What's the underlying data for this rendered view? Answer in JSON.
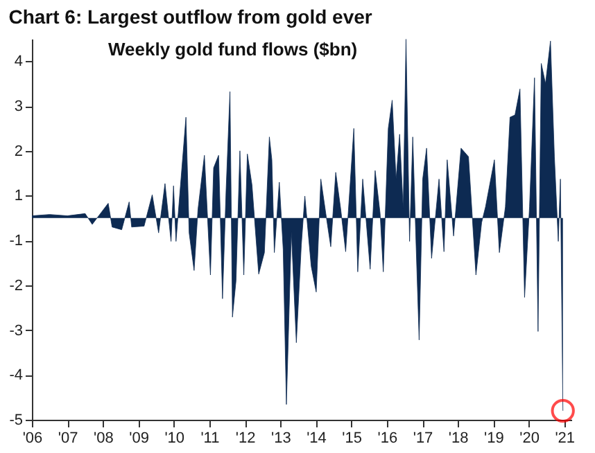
{
  "chart_data": {
    "type": "area",
    "title": "Chart 6: Largest outflow from gold ever",
    "subtitle": "Weekly gold fund flows ($bn)",
    "x": [
      2006.0,
      2006.5,
      2007.0,
      2007.5,
      2007.7,
      2008.15,
      2008.26,
      2008.53,
      2008.74,
      2008.81,
      2009.16,
      2009.39,
      2009.57,
      2009.75,
      2009.92,
      2009.99,
      2010.06,
      2010.34,
      2010.43,
      2010.57,
      2010.68,
      2010.86,
      2011.03,
      2011.12,
      2011.26,
      2011.37,
      2011.47,
      2011.58,
      2011.65,
      2011.75,
      2011.86,
      2011.97,
      2012.07,
      2012.2,
      2012.39,
      2012.55,
      2012.69,
      2012.76,
      2012.83,
      2012.97,
      2013.08,
      2013.17,
      2013.31,
      2013.45,
      2013.59,
      2013.69,
      2013.87,
      2014.01,
      2014.14,
      2014.28,
      2014.42,
      2014.56,
      2014.7,
      2014.84,
      2015.07,
      2015.18,
      2015.32,
      2015.53,
      2015.67,
      2015.81,
      2015.9,
      2016.04,
      2016.15,
      2016.26,
      2016.36,
      2016.46,
      2016.54,
      2016.64,
      2016.73,
      2016.82,
      2016.91,
      2017.01,
      2017.12,
      2017.26,
      2017.47,
      2017.61,
      2017.7,
      2017.88,
      2018.09,
      2018.3,
      2018.51,
      2018.67,
      2018.78,
      2019.03,
      2019.17,
      2019.34,
      2019.47,
      2019.61,
      2019.75,
      2019.88,
      2020.02,
      2020.16,
      2020.26,
      2020.35,
      2020.47,
      2020.61,
      2020.72,
      2020.83,
      2020.89,
      2020.96
    ],
    "series": [
      {
        "color": "#0d2a52",
        "values": [
          0.05,
          0.08,
          0.05,
          0.1,
          -0.14,
          0.33,
          -0.2,
          -0.26,
          0.36,
          -0.2,
          -0.18,
          0.52,
          -0.33,
          0.77,
          -0.52,
          0.72,
          -0.52,
          2.25,
          -0.33,
          -1.17,
          0.2,
          1.4,
          -1.27,
          1.12,
          1.4,
          -1.8,
          0.6,
          2.82,
          -2.21,
          -1.4,
          1.5,
          -1.27,
          1.43,
          0.74,
          -1.25,
          -0.77,
          1.81,
          1.3,
          -0.77,
          0.8,
          -0.7,
          -4.16,
          -0.3,
          -2.78,
          -0.6,
          0.49,
          -1.08,
          -1.65,
          0.87,
          0.1,
          -0.64,
          1.02,
          0.2,
          -0.75,
          2.0,
          -1.2,
          0.87,
          -1.14,
          1.06,
          0.1,
          -1.2,
          2.0,
          2.63,
          0.87,
          1.87,
          0.2,
          3.99,
          -0.52,
          1.81,
          -0.5,
          -2.72,
          0.87,
          1.56,
          -0.9,
          0.87,
          -0.75,
          1.3,
          -0.4,
          1.56,
          1.37,
          -1.27,
          -0.1,
          0.25,
          1.3,
          -0.77,
          0.25,
          2.25,
          2.3,
          2.88,
          -1.77,
          0.25,
          3.13,
          -2.53,
          3.45,
          3.0,
          3.95,
          1.37,
          -0.52,
          0.87,
          -4.3
        ]
      },
      {
        "type": "scatter",
        "color": "#ff0000",
        "marker": "circle",
        "x": [
          2020.96
        ],
        "values": [
          -4.3
        ]
      }
    ],
    "xlim": [
      2006.0,
      2021.2
    ],
    "xticks": [
      {
        "value": 2006,
        "label": "'06"
      },
      {
        "value": 2007,
        "label": "'07"
      },
      {
        "value": 2008,
        "label": "'08"
      },
      {
        "value": 2009,
        "label": "'09"
      },
      {
        "value": 2010,
        "label": "'10"
      },
      {
        "value": 2011,
        "label": "'11"
      },
      {
        "value": 2012,
        "label": "'12"
      },
      {
        "value": 2013,
        "label": "'13"
      },
      {
        "value": 2014,
        "label": "'14"
      },
      {
        "value": 2015,
        "label": "'15"
      },
      {
        "value": 2016,
        "label": "'16"
      },
      {
        "value": 2017,
        "label": "'17"
      },
      {
        "value": 2018,
        "label": "'18"
      },
      {
        "value": 2019,
        "label": "'19"
      },
      {
        "value": 2020,
        "label": "'20"
      },
      {
        "value": 2021,
        "label": "'21"
      }
    ],
    "ylim": [
      -4.5,
      4.0
    ],
    "yticks": [
      {
        "value": 3.5,
        "label": "4"
      },
      {
        "value": 2.5,
        "label": "3"
      },
      {
        "value": 1.5,
        "label": "2"
      },
      {
        "value": 0.5,
        "label": "1"
      },
      {
        "value": -0.5,
        "label": "-1"
      },
      {
        "value": -1.5,
        "label": "-2"
      },
      {
        "value": -2.5,
        "label": "-3"
      },
      {
        "value": -3.5,
        "label": "-4"
      },
      {
        "value": -4.5,
        "label": "-5"
      }
    ],
    "grid": false
  }
}
